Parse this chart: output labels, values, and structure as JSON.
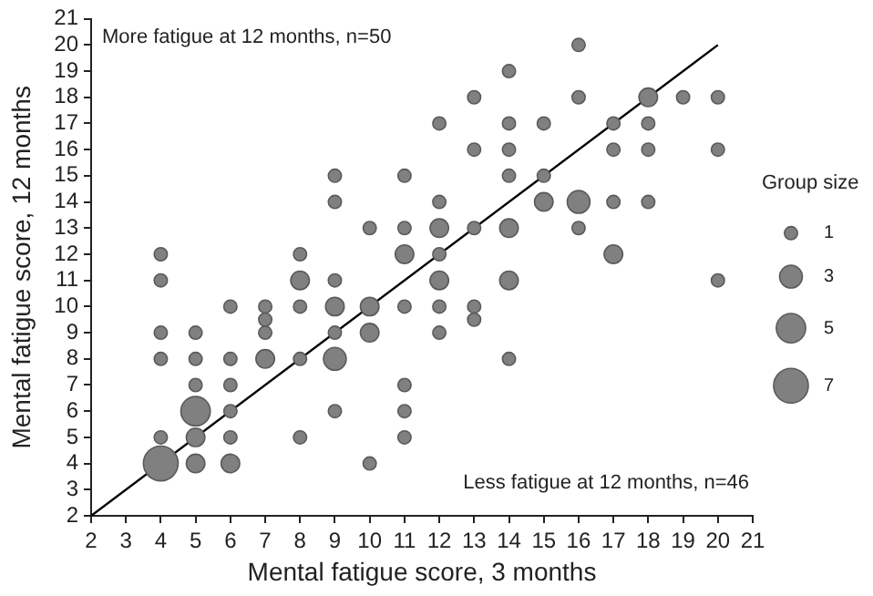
{
  "chart_data": {
    "type": "bubble",
    "xlabel": "Mental fatigue score, 3 months",
    "ylabel": "Mental fatigue score, 12 months",
    "xlim": [
      2,
      21
    ],
    "xticks": [
      2,
      3,
      4,
      5,
      6,
      7,
      8,
      9,
      10,
      11,
      12,
      13,
      14,
      15,
      16,
      17,
      18,
      19,
      20,
      21
    ],
    "ylim": [
      2,
      21
    ],
    "yticks": [
      2,
      3,
      4,
      5,
      6,
      7,
      8,
      9,
      10,
      11,
      12,
      13,
      14,
      15,
      16,
      17,
      18,
      19,
      20,
      21
    ],
    "legend_title": "Group size",
    "size_legend": [
      1,
      3,
      5,
      7
    ],
    "annotations": [
      "More fatigue at 12 months, n=50",
      "Less fatigue at 12 months, n=46"
    ],
    "series": [
      {
        "color": "#808080",
        "x": [
          4,
          4,
          4,
          4,
          4,
          4,
          5,
          5,
          5,
          5,
          5,
          5,
          6,
          6,
          6,
          6,
          6,
          6,
          7,
          7,
          7,
          7,
          8,
          8,
          8,
          8,
          8,
          9,
          9,
          9,
          9,
          9,
          9,
          9,
          10,
          10,
          10,
          10,
          11,
          11,
          11,
          11,
          11,
          11,
          11,
          12,
          12,
          12,
          12,
          12,
          12,
          12,
          13,
          13,
          13,
          13,
          13,
          14,
          14,
          14,
          14,
          14,
          14,
          14,
          15,
          15,
          15,
          16,
          16,
          16,
          16,
          17,
          17,
          17,
          17,
          18,
          18,
          18,
          18,
          19,
          20,
          20,
          20
        ],
        "values": [
          12,
          11,
          9,
          8,
          5,
          4,
          9,
          8,
          7,
          6,
          5,
          4,
          10,
          8,
          7,
          6,
          5,
          4,
          10,
          9.5,
          9,
          8,
          12,
          11,
          10,
          8,
          5,
          15,
          14,
          11,
          10,
          9,
          8,
          6,
          13,
          10,
          9,
          4,
          15,
          13,
          12,
          10,
          7,
          6,
          5,
          17,
          14,
          13,
          12,
          11,
          10,
          9,
          18,
          16,
          13,
          10,
          9.5,
          19,
          17,
          16,
          15,
          13,
          11,
          8,
          17,
          15,
          14,
          20,
          18,
          14,
          13,
          17,
          16,
          14,
          12,
          18,
          17,
          16,
          14,
          18,
          18,
          16,
          11
        ],
        "sizes": [
          1,
          1,
          1,
          1,
          1,
          7,
          1,
          1,
          1,
          5,
          2,
          2,
          1,
          1,
          1,
          1,
          1,
          2,
          1,
          1,
          1,
          2,
          1,
          2,
          1,
          1,
          1,
          1,
          1,
          1,
          2,
          1,
          3,
          1,
          1,
          2,
          2,
          1,
          1,
          1,
          2,
          1,
          1,
          1,
          1,
          1,
          1,
          2,
          1,
          2,
          1,
          1,
          1,
          1,
          1,
          1,
          1,
          1,
          1,
          1,
          1,
          2,
          2,
          1,
          1,
          1,
          2,
          1,
          1,
          3,
          1,
          1,
          1,
          1,
          2,
          2,
          1,
          1,
          1,
          1,
          1,
          1,
          1
        ]
      },
      {
        "type": "line",
        "color": "#000000",
        "x": [
          2,
          20
        ],
        "values": [
          2,
          20
        ]
      }
    ]
  }
}
